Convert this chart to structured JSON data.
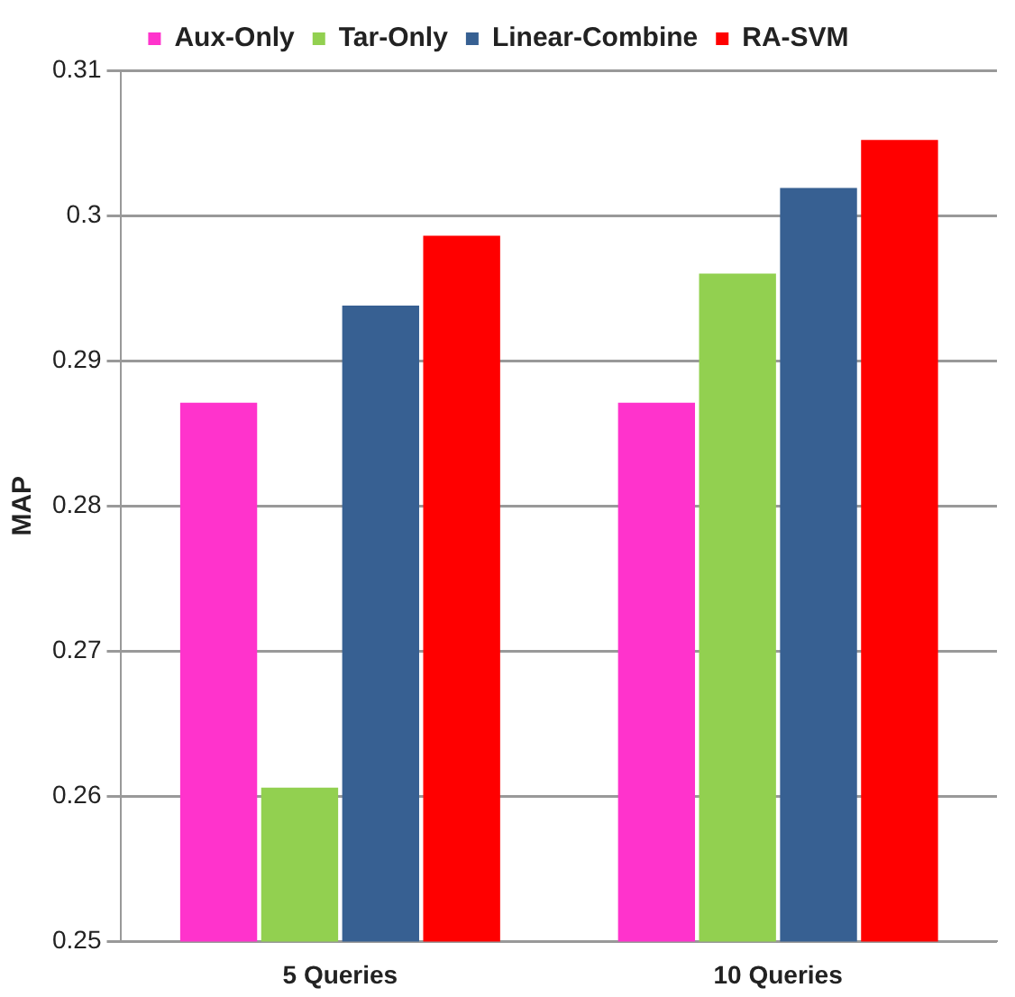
{
  "chart_data": {
    "type": "bar",
    "ylabel": "MAP",
    "categories": [
      "5 Queries",
      "10 Queries"
    ],
    "series": [
      {
        "name": "Aux-Only",
        "color": "#ff33cc",
        "values": [
          0.2871,
          0.2871
        ]
      },
      {
        "name": "Tar-Only",
        "color": "#92d050",
        "values": [
          0.2606,
          0.296
        ]
      },
      {
        "name": "Linear-Combine",
        "color": "#376092",
        "values": [
          0.2938,
          0.3019
        ]
      },
      {
        "name": "RA-SVM",
        "color": "#ff0000",
        "values": [
          0.2986,
          0.3052
        ]
      }
    ],
    "ylim": [
      0.25,
      0.31
    ],
    "yticks": [
      0.25,
      0.26,
      0.27,
      0.28,
      0.29,
      0.3,
      0.31
    ],
    "grid": "y",
    "legend": "top"
  }
}
